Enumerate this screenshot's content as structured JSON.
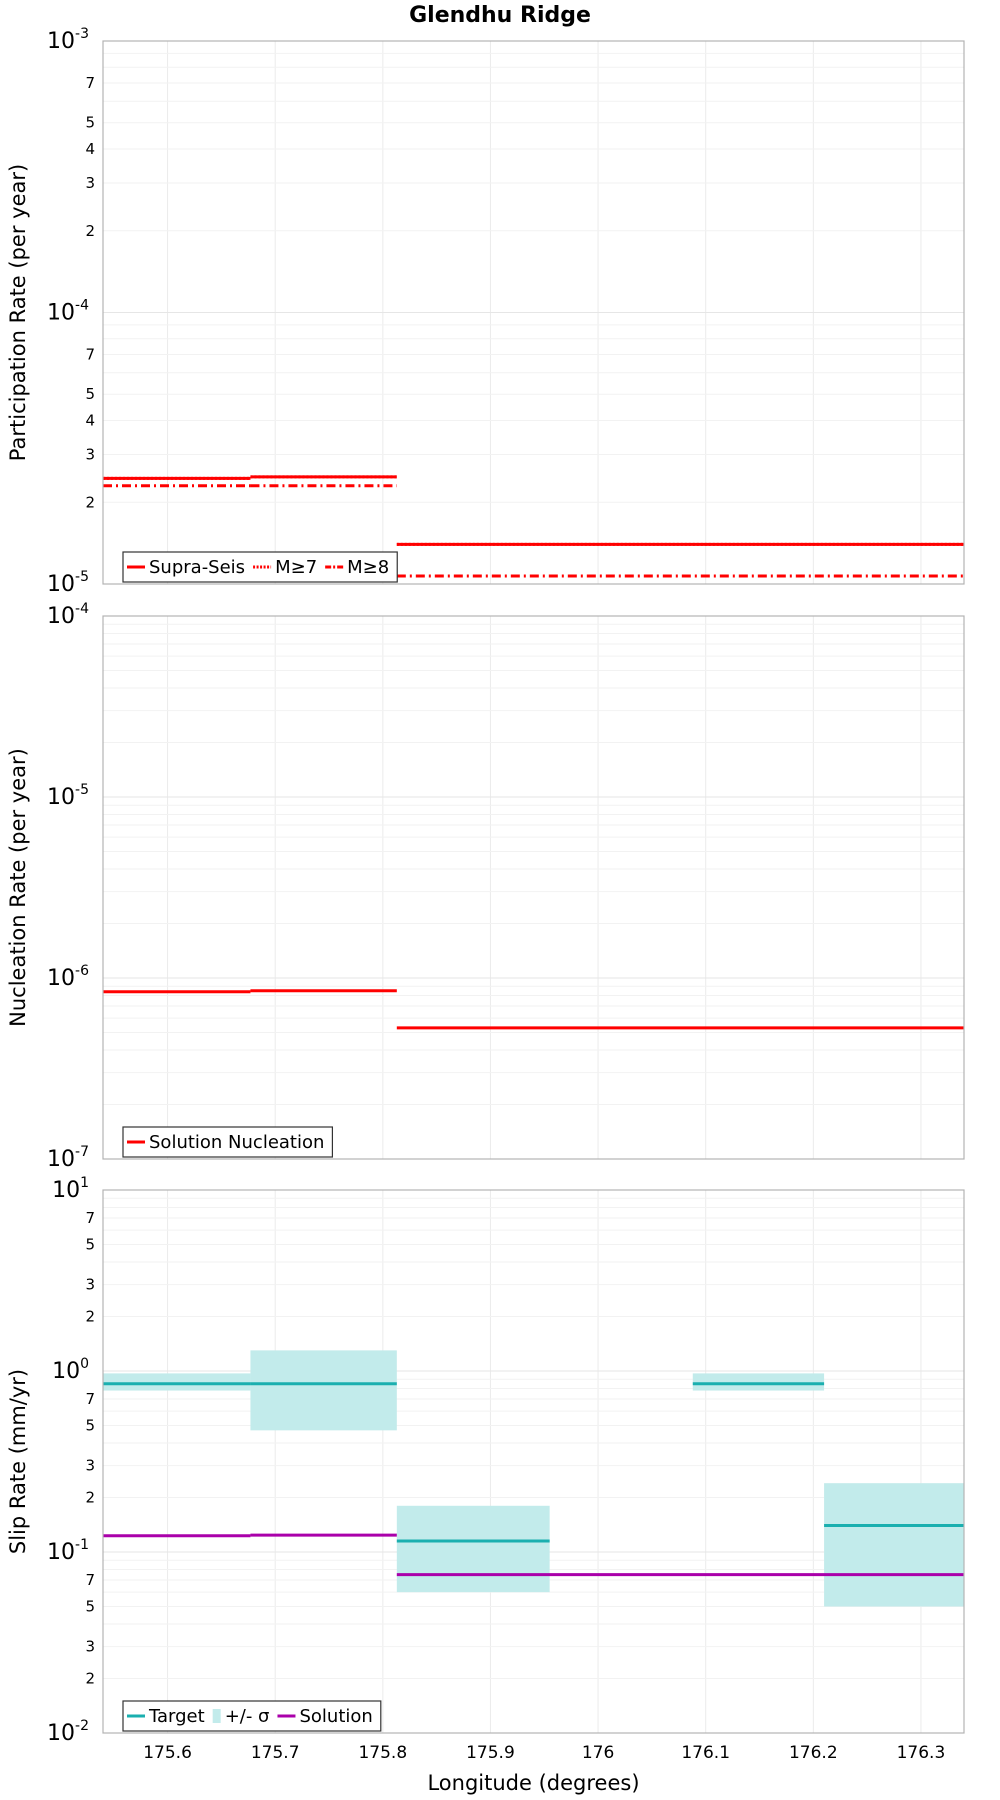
{
  "chart_data": [
    {
      "type": "line",
      "title": "Glendhu Ridge",
      "ylabel": "Participation Rate (per year)",
      "yscale": "log",
      "ylim": [
        1e-05,
        0.001
      ],
      "xlim": [
        175.54,
        176.34
      ],
      "series": [
        {
          "name": "Supra-Seis",
          "color": "#ff0000",
          "style": "solid",
          "segments": [
            [
              175.54,
              175.677,
              2.45e-05
            ],
            [
              175.677,
              175.813,
              2.48e-05
            ],
            [
              175.813,
              176.34,
              1.4e-05
            ]
          ]
        },
        {
          "name": "M≥7",
          "color": "#ff0000",
          "style": "dotted",
          "segments": [
            [
              175.54,
              175.677,
              2.45e-05
            ],
            [
              175.677,
              175.813,
              2.48e-05
            ],
            [
              175.813,
              176.34,
              1.4e-05
            ]
          ]
        },
        {
          "name": "M≥8",
          "color": "#ff0000",
          "style": "dashdot",
          "segments": [
            [
              175.54,
              175.677,
              2.3e-05
            ],
            [
              175.677,
              175.813,
              2.3e-05
            ],
            [
              175.813,
              176.34,
              1.07e-05
            ]
          ]
        }
      ],
      "legend": "bottom-left"
    },
    {
      "type": "line",
      "ylabel": "Nucleation Rate (per year)",
      "yscale": "log",
      "ylim": [
        1e-07,
        0.0001
      ],
      "xlim": [
        175.54,
        176.34
      ],
      "series": [
        {
          "name": "Solution Nucleation",
          "color": "#ff0000",
          "style": "solid",
          "segments": [
            [
              175.54,
              175.677,
              8.4e-07
            ],
            [
              175.677,
              175.813,
              8.5e-07
            ],
            [
              175.813,
              176.34,
              5.3e-07
            ]
          ]
        }
      ],
      "legend": "bottom-left"
    },
    {
      "type": "line",
      "ylabel": "Slip Rate (mm/yr)",
      "xlabel": "Longitude (degrees)",
      "yscale": "log",
      "ylim": [
        0.01,
        10
      ],
      "xlim": [
        175.54,
        176.34
      ],
      "xticks": [
        "175.6",
        "175.7",
        "175.8",
        "175.9",
        "176",
        "176.1",
        "176.2",
        "176.3"
      ],
      "xtick_values": [
        175.6,
        175.7,
        175.8,
        175.9,
        176.0,
        176.1,
        176.2,
        176.3
      ],
      "series": [
        {
          "name": "Target",
          "color": "#1aafaf",
          "style": "solid",
          "segments": [
            [
              175.54,
              175.677,
              0.85
            ],
            [
              175.677,
              175.813,
              0.85
            ],
            [
              175.813,
              175.955,
              0.115
            ],
            [
              176.088,
              176.21,
              0.85
            ],
            [
              176.21,
              176.34,
              0.14
            ]
          ]
        },
        {
          "name": "+/- σ",
          "color": "#c2ebeb",
          "style": "band",
          "bands": [
            [
              175.54,
              175.677,
              0.78,
              0.97
            ],
            [
              175.677,
              175.813,
              0.47,
              1.3
            ],
            [
              175.813,
              175.955,
              0.06,
              0.18
            ],
            [
              176.088,
              176.21,
              0.78,
              0.97
            ],
            [
              176.21,
              176.34,
              0.05,
              0.24
            ]
          ]
        },
        {
          "name": "Solution",
          "color": "#aa00aa",
          "style": "solid",
          "segments": [
            [
              175.54,
              175.677,
              0.123
            ],
            [
              175.677,
              175.813,
              0.124
            ],
            [
              175.813,
              176.34,
              0.075
            ]
          ]
        }
      ],
      "legend": "bottom-left"
    }
  ]
}
